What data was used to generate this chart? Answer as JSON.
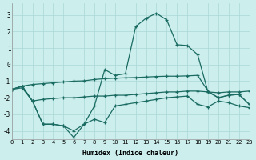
{
  "background_color": "#cceeed",
  "grid_color": "#aad8d5",
  "line_color": "#1a6b62",
  "xlabel": "Humidex (Indice chaleur)",
  "xlim_min": 0,
  "xlim_max": 23,
  "ylim_min": -4.5,
  "ylim_max": 3.7,
  "yticks": [
    -4,
    -3,
    -2,
    -1,
    0,
    1,
    2,
    3
  ],
  "xticks": [
    0,
    1,
    2,
    3,
    4,
    5,
    6,
    7,
    8,
    9,
    10,
    11,
    12,
    13,
    14,
    15,
    16,
    17,
    18,
    19,
    20,
    21,
    22,
    23
  ],
  "series": [
    {
      "x": [
        0,
        1,
        2,
        3,
        4,
        5,
        6,
        7,
        8,
        9,
        10,
        11,
        12,
        13,
        14,
        15,
        16,
        17,
        18,
        19,
        20,
        21,
        22,
        23
      ],
      "y": [
        -1.5,
        -1.3,
        -1.2,
        -1.15,
        -1.1,
        -1.05,
        -1.0,
        -0.98,
        -0.9,
        -0.85,
        -0.82,
        -0.8,
        -0.78,
        -0.75,
        -0.72,
        -0.7,
        -0.7,
        -0.68,
        -0.65,
        -1.6,
        -2.0,
        -1.85,
        -1.8,
        -2.4
      ]
    },
    {
      "x": [
        0,
        1,
        2,
        3,
        4,
        5,
        6,
        7,
        8,
        9,
        10,
        11,
        12,
        13,
        14,
        15,
        16,
        17,
        18,
        19,
        20,
        21,
        22,
        23
      ],
      "y": [
        -1.5,
        -1.4,
        -2.2,
        -2.1,
        -2.05,
        -2.0,
        -2.0,
        -1.95,
        -1.9,
        -1.9,
        -1.85,
        -1.85,
        -1.8,
        -1.75,
        -1.7,
        -1.65,
        -1.65,
        -1.6,
        -1.6,
        -1.65,
        -1.7,
        -1.65,
        -1.65,
        -1.6
      ]
    },
    {
      "x": [
        0,
        1,
        2,
        3,
        4,
        5,
        6,
        7,
        8,
        9,
        10,
        11,
        12,
        13,
        14,
        15,
        16,
        17,
        18,
        19,
        20,
        21,
        22,
        23
      ],
      "y": [
        -1.5,
        -1.3,
        -2.2,
        -3.6,
        -3.6,
        -3.7,
        -4.4,
        -3.6,
        -2.5,
        -0.3,
        -0.65,
        -0.55,
        2.3,
        2.8,
        3.1,
        2.7,
        1.2,
        1.15,
        0.6,
        -1.65,
        -2.0,
        -1.85,
        -1.8,
        -2.4
      ]
    },
    {
      "x": [
        0,
        1,
        2,
        3,
        4,
        5,
        6,
        7,
        8,
        9,
        10,
        11,
        12,
        13,
        14,
        15,
        16,
        17,
        18,
        19,
        20,
        21,
        22,
        23
      ],
      "y": [
        -1.5,
        -1.3,
        -2.2,
        -3.6,
        -3.6,
        -3.7,
        -4.0,
        -3.6,
        -3.3,
        -3.5,
        -2.5,
        -2.4,
        -2.3,
        -2.2,
        -2.1,
        -2.0,
        -1.95,
        -1.9,
        -2.4,
        -2.55,
        -2.2,
        -2.3,
        -2.5,
        -2.6
      ]
    }
  ]
}
